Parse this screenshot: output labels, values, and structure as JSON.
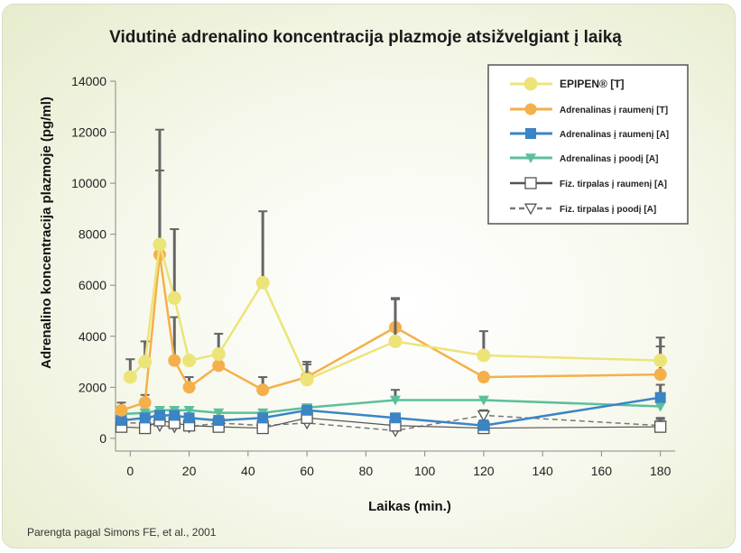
{
  "chart_data": {
    "type": "line",
    "title": "Vidutinė adrenalino koncentracija plazmoje atsižvelgiant į laiką",
    "xlabel": "Laikas (min.)",
    "ylabel": "Adrenalino koncentracija plazmoje (pg/ml)",
    "xlim": [
      -5,
      185
    ],
    "ylim": [
      -500,
      14000
    ],
    "xticks": [
      0,
      20,
      40,
      60,
      80,
      100,
      120,
      140,
      160,
      180
    ],
    "yticks": [
      0,
      2000,
      4000,
      6000,
      8000,
      10000,
      12000,
      14000
    ],
    "legend_position": "top-right",
    "series": [
      {
        "name": "EPIPEN® [T]",
        "color": "#ece479",
        "marker": "circle-big",
        "x": [
          0,
          5,
          10,
          15,
          20,
          30,
          45,
          60,
          90,
          120,
          180
        ],
        "y": [
          2400,
          3000,
          7600,
          5500,
          3050,
          3300,
          6100,
          2300,
          3800,
          3250,
          3050
        ],
        "err": [
          700,
          800,
          4500,
          2700,
          0,
          800,
          2800,
          700,
          1700,
          950,
          900
        ]
      },
      {
        "name": "Adrenalinas į raumenį [T]",
        "color": "#f4b04a",
        "marker": "circle",
        "x": [
          -3,
          5,
          10,
          15,
          20,
          30,
          45,
          60,
          90,
          120,
          180
        ],
        "y": [
          1100,
          1400,
          7200,
          3050,
          2000,
          2850,
          1900,
          2400,
          4350,
          2400,
          2500
        ],
        "err": [
          300,
          300,
          3300,
          1700,
          400,
          0,
          500,
          500,
          1100,
          0,
          1100
        ]
      },
      {
        "name": "Adrenalinas į raumenį [A]",
        "color": "#3b84c6",
        "marker": "square",
        "x": [
          -3,
          5,
          10,
          15,
          20,
          30,
          45,
          60,
          90,
          120,
          180
        ],
        "y": [
          700,
          800,
          900,
          900,
          800,
          700,
          800,
          1100,
          800,
          500,
          1600
        ],
        "err": [
          0,
          0,
          0,
          0,
          0,
          0,
          0,
          0,
          0,
          0,
          500
        ]
      },
      {
        "name": "Adrenalinas į poodį [A]",
        "color": "#5cbf9b",
        "marker": "triangle-down",
        "x": [
          -3,
          5,
          10,
          15,
          20,
          30,
          45,
          60,
          90,
          120,
          180
        ],
        "y": [
          950,
          1000,
          1100,
          1100,
          1100,
          1000,
          1000,
          1200,
          1500,
          1500,
          1250
        ],
        "err": [
          0,
          0,
          0,
          0,
          0,
          0,
          0,
          0,
          400,
          0,
          0
        ]
      },
      {
        "name": "Fiz. tirpalas į raumenį [A]",
        "color": "#7a7a7a",
        "marker": "square-open",
        "x": [
          -3,
          5,
          10,
          15,
          20,
          30,
          45,
          60,
          90,
          120,
          180
        ],
        "y": [
          450,
          400,
          700,
          600,
          500,
          450,
          400,
          800,
          500,
          400,
          450
        ],
        "err": [
          300,
          300,
          400,
          300,
          300,
          300,
          300,
          300,
          300,
          300,
          300
        ]
      },
      {
        "name": "Fiz. tirpalas į poodį [A]",
        "color": "#7a7a7a",
        "marker": "triangle-open",
        "dashed": true,
        "x": [
          -3,
          5,
          10,
          15,
          20,
          30,
          45,
          60,
          90,
          120,
          180
        ],
        "y": [
          600,
          600,
          500,
          450,
          450,
          600,
          500,
          600,
          300,
          900,
          500
        ],
        "err": [
          200,
          200,
          300,
          300,
          200,
          200,
          200,
          200,
          300,
          200,
          300
        ]
      }
    ],
    "source": "Parengta pagal Simons FE, et al., 2001"
  }
}
